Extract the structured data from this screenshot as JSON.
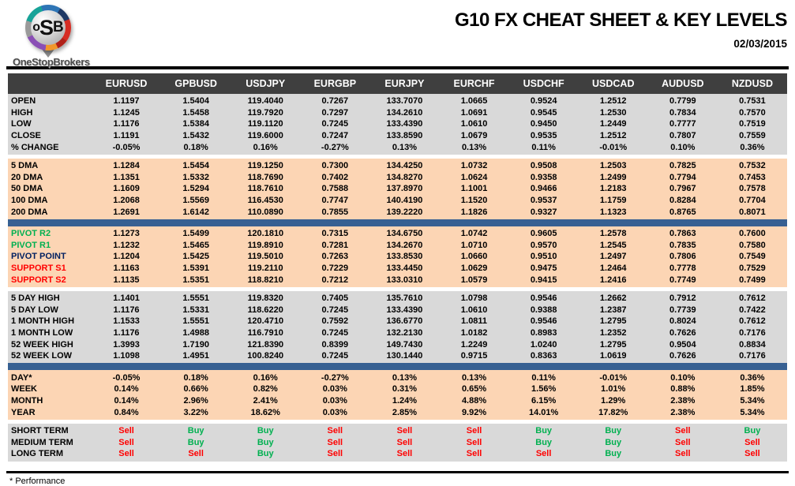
{
  "header": {
    "logo_letters": [
      "o",
      "S",
      "B"
    ],
    "logo_subtext": "OneStopBrokers",
    "title": "G10 FX CHEAT SHEET & KEY LEVELS",
    "date": "02/03/2015"
  },
  "colors": {
    "header_bar": "#3f3f3f",
    "gray_block": "#d9d9d9",
    "peach_block": "#fcd5b4",
    "blue_divider": "#376092",
    "buy_green": "#00b050",
    "sell_red": "#ff0000",
    "pivot_navy": "#002060"
  },
  "table": {
    "columns": [
      "EURUSD",
      "GPBUSD",
      "USDJPY",
      "EURGBP",
      "EURJPY",
      "EURCHF",
      "USDCHF",
      "USDCAD",
      "AUDUSD",
      "NZDUSD"
    ],
    "sections": [
      {
        "id": "ohlc",
        "bg": "gray",
        "rows": [
          {
            "label": "OPEN",
            "values": [
              "1.1197",
              "1.5404",
              "119.4040",
              "0.7267",
              "133.7070",
              "1.0665",
              "0.9524",
              "1.2512",
              "0.7799",
              "0.7531"
            ]
          },
          {
            "label": "HIGH",
            "values": [
              "1.1245",
              "1.5458",
              "119.7920",
              "0.7297",
              "134.2610",
              "1.0691",
              "0.9545",
              "1.2530",
              "0.7834",
              "0.7570"
            ]
          },
          {
            "label": "LOW",
            "values": [
              "1.1176",
              "1.5384",
              "119.1120",
              "0.7245",
              "133.4390",
              "1.0610",
              "0.9450",
              "1.2449",
              "0.7777",
              "0.7519"
            ]
          },
          {
            "label": "CLOSE",
            "values": [
              "1.1191",
              "1.5432",
              "119.6000",
              "0.7247",
              "133.8590",
              "1.0679",
              "0.9535",
              "1.2512",
              "0.7807",
              "0.7559"
            ]
          },
          {
            "label": "% CHANGE",
            "values": [
              "-0.05%",
              "0.18%",
              "0.16%",
              "-0.27%",
              "0.13%",
              "0.13%",
              "0.11%",
              "-0.01%",
              "0.10%",
              "0.36%"
            ]
          }
        ]
      },
      {
        "id": "dma",
        "bg": "peach",
        "rows": [
          {
            "label": "5 DMA",
            "values": [
              "1.1284",
              "1.5454",
              "119.1250",
              "0.7300",
              "134.4250",
              "1.0732",
              "0.9508",
              "1.2503",
              "0.7825",
              "0.7532"
            ]
          },
          {
            "label": "20 DMA",
            "values": [
              "1.1351",
              "1.5332",
              "118.7690",
              "0.7402",
              "134.8270",
              "1.0624",
              "0.9358",
              "1.2499",
              "0.7794",
              "0.7453"
            ]
          },
          {
            "label": "50 DMA",
            "values": [
              "1.1609",
              "1.5294",
              "118.7610",
              "0.7588",
              "137.8970",
              "1.1001",
              "0.9466",
              "1.2183",
              "0.7967",
              "0.7578"
            ]
          },
          {
            "label": "100 DMA",
            "values": [
              "1.2068",
              "1.5569",
              "116.4530",
              "0.7747",
              "140.4190",
              "1.1520",
              "0.9537",
              "1.1759",
              "0.8284",
              "0.7704"
            ]
          },
          {
            "label": "200 DMA",
            "values": [
              "1.2691",
              "1.6142",
              "110.0890",
              "0.7855",
              "139.2220",
              "1.1826",
              "0.9327",
              "1.1323",
              "0.8765",
              "0.8071"
            ]
          }
        ]
      },
      {
        "id": "pivots",
        "bg": "peach",
        "rows": [
          {
            "label": "PIVOT R2",
            "label_color": "green",
            "values": [
              "1.1273",
              "1.5499",
              "120.1810",
              "0.7315",
              "134.6750",
              "1.0742",
              "0.9605",
              "1.2578",
              "0.7863",
              "0.7600"
            ]
          },
          {
            "label": "PIVOT R1",
            "label_color": "green",
            "values": [
              "1.1232",
              "1.5465",
              "119.8910",
              "0.7281",
              "134.2670",
              "1.0710",
              "0.9570",
              "1.2545",
              "0.7835",
              "0.7580"
            ]
          },
          {
            "label": "PIVOT POINT",
            "label_color": "navy",
            "values": [
              "1.1204",
              "1.5425",
              "119.5010",
              "0.7263",
              "133.8530",
              "1.0660",
              "0.9510",
              "1.2497",
              "0.7806",
              "0.7549"
            ]
          },
          {
            "label": "SUPPORT S1",
            "label_color": "red",
            "values": [
              "1.1163",
              "1.5391",
              "119.2110",
              "0.7229",
              "133.4450",
              "1.0629",
              "0.9475",
              "1.2464",
              "0.7778",
              "0.7529"
            ]
          },
          {
            "label": "SUPPORT S2",
            "label_color": "red",
            "values": [
              "1.1135",
              "1.5351",
              "118.8210",
              "0.7212",
              "133.0310",
              "1.0579",
              "0.9415",
              "1.2416",
              "0.7749",
              "0.7499"
            ]
          }
        ]
      },
      {
        "id": "ranges",
        "bg": "gray",
        "rows": [
          {
            "label": "5 DAY HIGH",
            "values": [
              "1.1401",
              "1.5551",
              "119.8320",
              "0.7405",
              "135.7610",
              "1.0798",
              "0.9546",
              "1.2662",
              "0.7912",
              "0.7612"
            ]
          },
          {
            "label": "5 DAY LOW",
            "values": [
              "1.1176",
              "1.5331",
              "118.6220",
              "0.7245",
              "133.4390",
              "1.0610",
              "0.9388",
              "1.2387",
              "0.7739",
              "0.7422"
            ]
          },
          {
            "label": "1 MONTH HIGH",
            "values": [
              "1.1533",
              "1.5551",
              "120.4710",
              "0.7592",
              "136.6770",
              "1.0811",
              "0.9546",
              "1.2795",
              "0.8024",
              "0.7612"
            ]
          },
          {
            "label": "1 MONTH LOW",
            "values": [
              "1.1176",
              "1.4988",
              "116.7910",
              "0.7245",
              "132.2130",
              "1.0182",
              "0.8983",
              "1.2352",
              "0.7626",
              "0.7176"
            ]
          },
          {
            "label": "52 WEEK HIGH",
            "values": [
              "1.3993",
              "1.7190",
              "121.8390",
              "0.8399",
              "149.7430",
              "1.2249",
              "1.0240",
              "1.2795",
              "0.9504",
              "0.8834"
            ]
          },
          {
            "label": "52 WEEK LOW",
            "values": [
              "1.1098",
              "1.4951",
              "100.8240",
              "0.7245",
              "130.1440",
              "0.9715",
              "0.8363",
              "1.0619",
              "0.7626",
              "0.7176"
            ]
          }
        ]
      },
      {
        "id": "performance",
        "bg": "peach",
        "rows": [
          {
            "label": "DAY*",
            "values": [
              "-0.05%",
              "0.18%",
              "0.16%",
              "-0.27%",
              "0.13%",
              "0.13%",
              "0.11%",
              "-0.01%",
              "0.10%",
              "0.36%"
            ]
          },
          {
            "label": "WEEK",
            "values": [
              "0.14%",
              "0.66%",
              "0.82%",
              "0.03%",
              "0.31%",
              "0.65%",
              "1.56%",
              "1.01%",
              "0.88%",
              "1.85%"
            ]
          },
          {
            "label": "MONTH",
            "values": [
              "0.14%",
              "2.96%",
              "2.41%",
              "0.03%",
              "1.24%",
              "4.88%",
              "6.15%",
              "1.29%",
              "2.38%",
              "5.34%"
            ]
          },
          {
            "label": "YEAR",
            "values": [
              "0.84%",
              "3.22%",
              "18.62%",
              "0.03%",
              "2.85%",
              "9.92%",
              "14.01%",
              "17.82%",
              "2.38%",
              "5.34%"
            ]
          }
        ]
      },
      {
        "id": "signals",
        "bg": "gray",
        "rows": [
          {
            "label": "SHORT TERM",
            "values": [
              "Sell",
              "Buy",
              "Buy",
              "Sell",
              "Sell",
              "Sell",
              "Buy",
              "Buy",
              "Sell",
              "Buy"
            ]
          },
          {
            "label": "MEDIUM TERM",
            "values": [
              "Sell",
              "Buy",
              "Buy",
              "Sell",
              "Sell",
              "Sell",
              "Buy",
              "Buy",
              "Sell",
              "Sell"
            ]
          },
          {
            "label": "LONG TERM",
            "values": [
              "Sell",
              "Sell",
              "Buy",
              "Sell",
              "Sell",
              "Sell",
              "Sell",
              "Buy",
              "Sell",
              "Sell"
            ]
          }
        ]
      }
    ]
  },
  "footer": {
    "note": "* Performance"
  }
}
